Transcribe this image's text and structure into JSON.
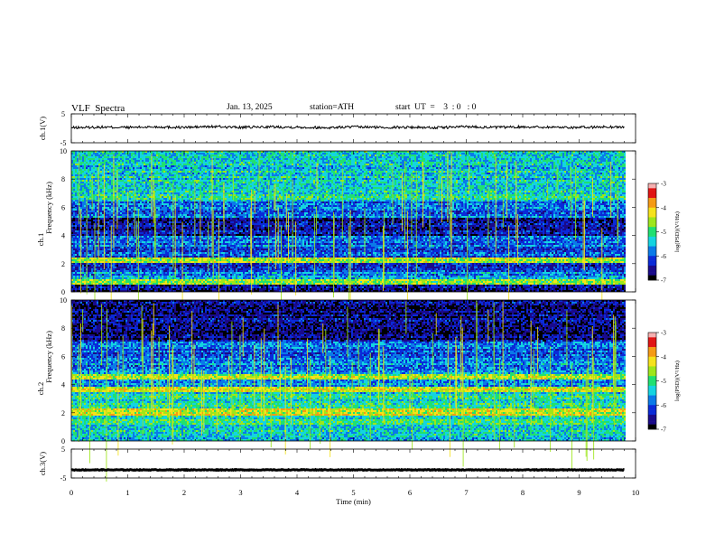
{
  "header": {
    "title": "VLF  Spectra",
    "date": "Jan. 13, 2025",
    "station": "station=ATH",
    "start": "start  UT  =    3  : 0   : 0"
  },
  "colors": {
    "scale": [
      "#000000",
      "#1a0a8a",
      "#0a2ad8",
      "#0a7ae8",
      "#14d4e0",
      "#20e070",
      "#9ee61a",
      "#f5e21a",
      "#f59a14",
      "#e01414",
      "#f5b0b0"
    ],
    "waveform": "#000000"
  },
  "chart_data": [
    {
      "type": "line",
      "name": "ch1-waveform",
      "ylabel": "ch.1(V)",
      "ylim": [
        -5,
        5
      ],
      "yticks": [
        "5",
        "-5"
      ],
      "x": [
        0,
        0.5,
        1,
        1.5,
        2,
        2.5,
        3,
        3.5,
        4,
        4.5,
        5,
        5.5,
        6,
        6.5,
        7,
        7.5,
        8,
        8.5,
        9,
        9.5,
        9.8
      ],
      "values": [
        0.2,
        0.4,
        0.3,
        0.5,
        0.3,
        0.6,
        0.3,
        0.5,
        0.4,
        0.2,
        0.5,
        0.3,
        0.4,
        0.2,
        0.6,
        0.3,
        0.5,
        0.4,
        0.3,
        0.5,
        0.4
      ]
    },
    {
      "type": "heatmap",
      "name": "ch1-spectrogram",
      "ylabel": "Frequency  (kHz)",
      "channel_label": "ch.1",
      "ylim": [
        0,
        10
      ],
      "yticks": [
        "10",
        "8",
        "6",
        "4",
        "2",
        "0"
      ],
      "xlim": [
        0,
        10
      ],
      "data_until": 9.8,
      "bands_khz": [
        {
          "f0": 0.0,
          "f1": 0.5,
          "level": -6.6
        },
        {
          "f0": 0.5,
          "f1": 0.9,
          "level": -4.8
        },
        {
          "f0": 0.9,
          "f1": 1.4,
          "level": -5.8
        },
        {
          "f0": 1.4,
          "f1": 2.0,
          "level": -6.2
        },
        {
          "f0": 2.0,
          "f1": 2.4,
          "level": -4.6
        },
        {
          "f0": 2.4,
          "f1": 3.2,
          "level": -6.0
        },
        {
          "f0": 3.2,
          "f1": 4.0,
          "level": -5.9
        },
        {
          "f0": 4.0,
          "f1": 5.3,
          "level": -6.5
        },
        {
          "f0": 5.3,
          "f1": 6.4,
          "level": -5.9
        },
        {
          "f0": 6.4,
          "f1": 7.2,
          "level": -5.3
        },
        {
          "f0": 7.2,
          "f1": 10.0,
          "level": -5.4
        }
      ],
      "colorbar": {
        "label": "log(PSD)(V²/Hz)",
        "ticks": [
          "-3",
          "-4",
          "-5",
          "-6",
          "-7"
        ],
        "range": [
          -7,
          -3
        ]
      }
    },
    {
      "type": "heatmap",
      "name": "ch2-spectrogram",
      "ylabel": "Frequency  (kHz)",
      "channel_label": "ch.2",
      "ylim": [
        0,
        10
      ],
      "yticks": [
        "10",
        "8",
        "6",
        "4",
        "2",
        "0"
      ],
      "xlim": [
        0,
        10
      ],
      "data_until": 9.8,
      "bands_khz": [
        {
          "f0": 0.0,
          "f1": 0.5,
          "level": -5.4
        },
        {
          "f0": 0.5,
          "f1": 1.8,
          "level": -5.2
        },
        {
          "f0": 1.8,
          "f1": 2.3,
          "level": -4.3
        },
        {
          "f0": 2.3,
          "f1": 3.4,
          "level": -5.3
        },
        {
          "f0": 3.4,
          "f1": 3.8,
          "level": -4.4
        },
        {
          "f0": 3.8,
          "f1": 4.4,
          "level": -5.6
        },
        {
          "f0": 4.4,
          "f1": 4.7,
          "level": -4.5
        },
        {
          "f0": 4.7,
          "f1": 6.0,
          "level": -5.8
        },
        {
          "f0": 6.0,
          "f1": 7.0,
          "level": -6.0
        },
        {
          "f0": 7.0,
          "f1": 10.0,
          "level": -6.6
        }
      ],
      "colorbar": {
        "label": "log(PSD)(V²/Hz)",
        "ticks": [
          "-3",
          "-4",
          "-5",
          "-6",
          "-7"
        ],
        "range": [
          -7,
          -3
        ]
      }
    },
    {
      "type": "line",
      "name": "ch3-waveform",
      "ylabel": "ch.3(V)",
      "ylim": [
        -5,
        5
      ],
      "yticks": [
        "5",
        "-5"
      ],
      "x": [
        0,
        9.8
      ],
      "values": [
        -2.2,
        -2.2
      ]
    }
  ],
  "xaxis": {
    "label": "Time  (min)",
    "range": [
      0,
      10
    ],
    "ticks": [
      "0",
      "1",
      "2",
      "3",
      "4",
      "5",
      "6",
      "7",
      "8",
      "9",
      "10"
    ]
  }
}
